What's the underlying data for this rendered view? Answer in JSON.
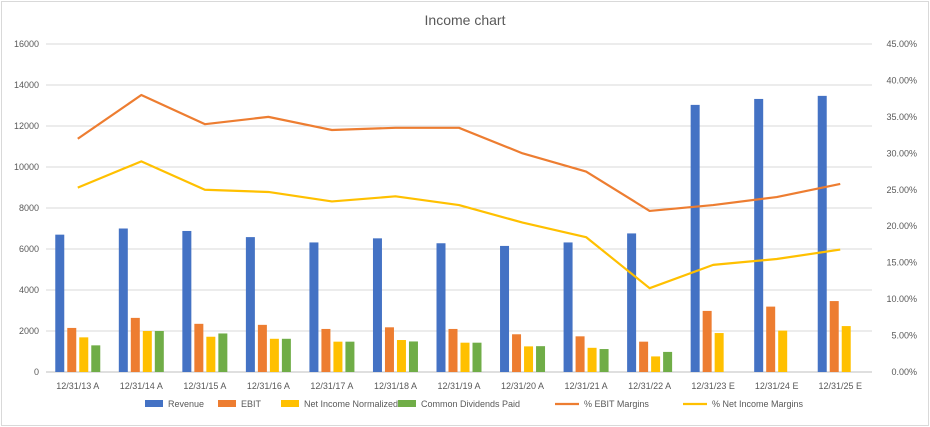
{
  "chart_data": {
    "type": "bar",
    "title": "Income chart",
    "categories": [
      "12/31/13 A",
      "12/31/14 A",
      "12/31/15 A",
      "12/31/16 A",
      "12/31/17 A",
      "12/31/18 A",
      "12/31/19 A",
      "12/31/20 A",
      "12/31/21 A",
      "12/31/22 A",
      "12/31/23 E",
      "12/31/24 E",
      "12/31/25 E"
    ],
    "y_left": {
      "min": 0,
      "max": 16000,
      "step": 2000,
      "ticks": [
        "0",
        "2000",
        "4000",
        "6000",
        "8000",
        "10000",
        "12000",
        "14000",
        "16000"
      ]
    },
    "y_right": {
      "min": 0,
      "max": 0.45,
      "step": 0.05,
      "ticks": [
        "0.00%",
        "5.00%",
        "10.00%",
        "15.00%",
        "20.00%",
        "25.00%",
        "30.00%",
        "35.00%",
        "40.00%",
        "45.00%"
      ]
    },
    "grid": true,
    "legend_position": "bottom",
    "bar_series": [
      {
        "name": "Revenue",
        "color": "#4472C4",
        "values": [
          6700,
          7000,
          6880,
          6580,
          6320,
          6520,
          6280,
          6150,
          6320,
          6760,
          13030,
          13320,
          13470
        ]
      },
      {
        "name": "EBIT",
        "color": "#ED7D31",
        "values": [
          2150,
          2640,
          2350,
          2300,
          2100,
          2180,
          2100,
          1840,
          1740,
          1480,
          2980,
          3190,
          3460
        ]
      },
      {
        "name": "Net Income Normalized",
        "color": "#FFC000",
        "values": [
          1690,
          2000,
          1720,
          1620,
          1480,
          1560,
          1430,
          1250,
          1180,
          760,
          1900,
          2020,
          2240
        ]
      },
      {
        "name": "Common Dividends Paid",
        "color": "#70AD47",
        "values": [
          1300,
          2000,
          1880,
          1620,
          1480,
          1490,
          1430,
          1260,
          1120,
          980,
          null,
          null,
          null
        ]
      }
    ],
    "line_series": [
      {
        "name": "% EBIT Margins",
        "color": "#ED7D31",
        "values": [
          0.32,
          0.38,
          0.34,
          0.35,
          0.332,
          0.335,
          0.335,
          0.3,
          0.275,
          0.221,
          0.229,
          0.24,
          0.258
        ]
      },
      {
        "name": "% Net Income Margins",
        "color": "#FFC000",
        "values": [
          0.253,
          0.289,
          0.25,
          0.247,
          0.234,
          0.241,
          0.229,
          0.205,
          0.185,
          0.115,
          0.147,
          0.155,
          0.168
        ]
      }
    ]
  }
}
